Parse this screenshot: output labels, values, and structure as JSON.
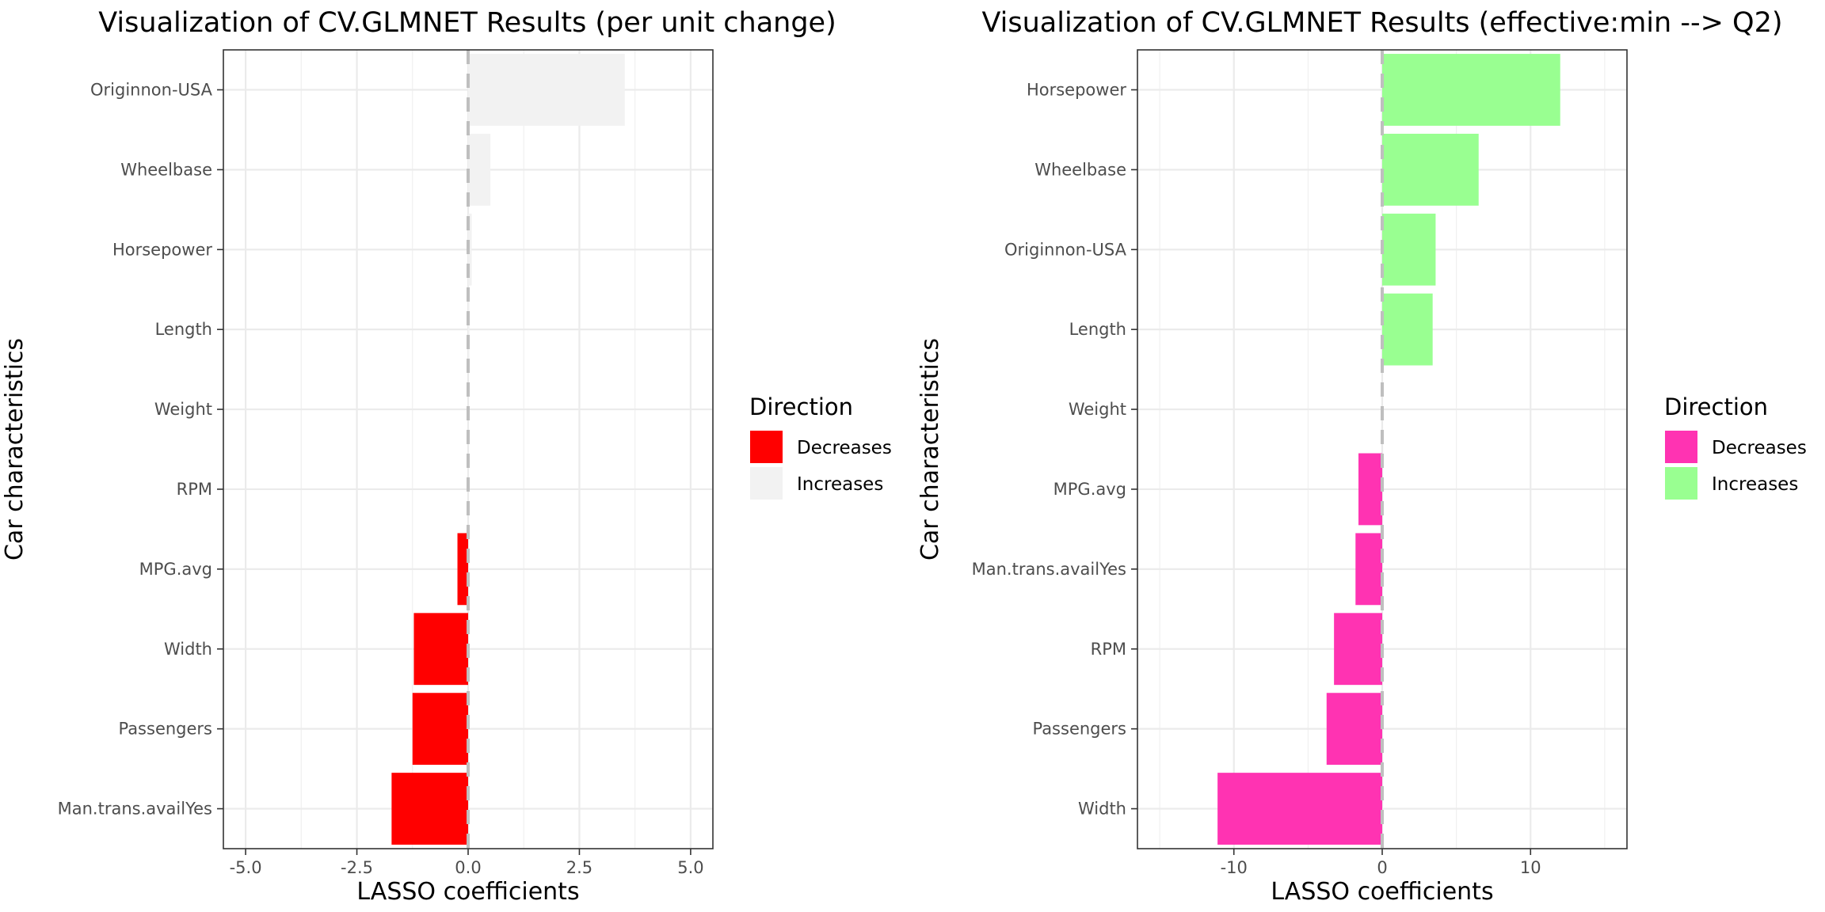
{
  "chart_data": [
    {
      "type": "bar",
      "orientation": "horizontal",
      "title": "Visualization of CV.GLMNET Results (per unit change)",
      "xlabel": "LASSO coefficients",
      "ylabel": "Car characteristics",
      "xlim": [
        -5.5,
        5.5
      ],
      "xticks": [
        -5.0,
        -2.5,
        0.0,
        2.5,
        5.0
      ],
      "xtick_labels": [
        "-5.0",
        "-2.5",
        "0.0",
        "2.5",
        "5.0"
      ],
      "grid": true,
      "zero_line": "dashed",
      "categories": [
        "Man.trans.availYes",
        "Passengers",
        "Width",
        "MPG.avg",
        "RPM",
        "Weight",
        "Length",
        "Horsepower",
        "Wheelbase",
        "Originnon-USA"
      ],
      "values": [
        -1.72,
        -1.25,
        -1.22,
        -0.24,
        0.0,
        0.0,
        0.03,
        0.08,
        0.5,
        3.52
      ],
      "legend": {
        "title": "Direction",
        "position": "right",
        "items": [
          {
            "label": "Decreases",
            "color": "#ff0000"
          },
          {
            "label": "Increases",
            "color": "#f2f2f2"
          }
        ]
      }
    },
    {
      "type": "bar",
      "orientation": "horizontal",
      "title": "Visualization of CV.GLMNET Results (effective:min --> Q2)",
      "xlabel": "LASSO coefficients",
      "ylabel": "Car characteristics",
      "xlim": [
        -16.5,
        16.5
      ],
      "xticks": [
        -10,
        0,
        10
      ],
      "xtick_labels": [
        "-10",
        "0",
        "10"
      ],
      "grid": true,
      "zero_line": "dashed",
      "categories": [
        "Width",
        "Passengers",
        "RPM",
        "Man.trans.availYes",
        "MPG.avg",
        "Weight",
        "Length",
        "Originnon-USA",
        "Wheelbase",
        "Horsepower"
      ],
      "values": [
        -11.1,
        -3.75,
        -3.25,
        -1.8,
        -1.6,
        0.0,
        3.4,
        3.6,
        6.5,
        12.0
      ],
      "legend": {
        "title": "Direction",
        "position": "right",
        "items": [
          {
            "label": "Decreases",
            "color": "#ff33b2"
          },
          {
            "label": "Increases",
            "color": "#99ff91"
          }
        ]
      }
    }
  ]
}
